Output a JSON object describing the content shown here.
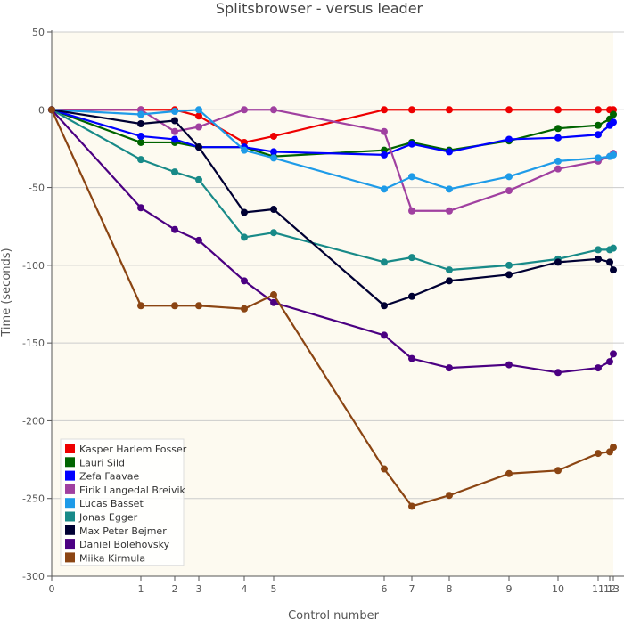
{
  "chart_data": {
    "type": "line",
    "title": "Splitsbrowser - versus leader",
    "xlabel": "Control number",
    "ylabel": "Time (seconds)",
    "x": [
      0,
      1,
      2,
      3,
      4,
      5,
      6,
      7,
      8,
      9,
      10,
      11,
      12,
      13
    ],
    "x_tick_labels": [
      "0",
      "1",
      "2",
      "3",
      "4",
      "5",
      "6",
      "7",
      "8",
      "9",
      "10",
      "11",
      "12",
      "13"
    ],
    "ylim": [
      -300,
      50
    ],
    "y_ticks": [
      50,
      0,
      -50,
      -100,
      -150,
      -200,
      -250,
      -300
    ],
    "grid": true,
    "legend_position": "bottom-left",
    "colors": {
      "plot_background": "#fdfaf0",
      "grid": "#cccccc",
      "axis": "#555555",
      "text": "#555555"
    },
    "series": [
      {
        "name": "Kasper Harlem Fosser",
        "color": "#ee0000",
        "values": [
          0,
          0,
          0,
          -4,
          -21,
          -17,
          0,
          0,
          0,
          0,
          0,
          0,
          0,
          0
        ]
      },
      {
        "name": "Lauri Sild",
        "color": "#006400",
        "values": [
          0,
          -21,
          -21,
          -24,
          -24,
          -30,
          -26,
          -21,
          -26,
          -20,
          -12,
          -10,
          -6,
          -3
        ]
      },
      {
        "name": "Zefa Faavae",
        "color": "#0000ff",
        "values": [
          0,
          -17,
          -19,
          -24,
          -24,
          -27,
          -29,
          -22,
          -27,
          -19,
          -18,
          -16,
          -10,
          -8
        ]
      },
      {
        "name": "Eirik Langedal Breivik",
        "color": "#a040a0",
        "values": [
          0,
          0,
          -14,
          -11,
          0,
          0,
          -14,
          -65,
          -65,
          -52,
          -38,
          -33,
          -30,
          -28
        ]
      },
      {
        "name": "Lucas Basset",
        "color": "#1e9be8",
        "values": [
          0,
          -3,
          -1,
          0,
          -26,
          -31,
          -51,
          -43,
          -51,
          -43,
          -33,
          -31,
          -30,
          -29
        ]
      },
      {
        "name": "Jonas Egger",
        "color": "#188a88",
        "values": [
          0,
          -32,
          -40,
          -45,
          -82,
          -79,
          -98,
          -95,
          -103,
          -100,
          -96,
          -90,
          -90,
          -89
        ]
      },
      {
        "name": "Max Peter Bejmer",
        "color": "#000033",
        "values": [
          0,
          -9,
          -7,
          -24,
          -66,
          -64,
          -126,
          -120,
          -110,
          -106,
          -98,
          -96,
          -98,
          -103
        ]
      },
      {
        "name": "Daniel Bolehovsky",
        "color": "#4b0082",
        "values": [
          0,
          -63,
          -77,
          -84,
          -110,
          -124,
          -145,
          -160,
          -166,
          -164,
          -169,
          -166,
          -162,
          -157
        ]
      },
      {
        "name": "Miika Kirmula",
        "color": "#8b4513",
        "values": [
          0,
          -126,
          -126,
          -126,
          -128,
          -119,
          -231,
          -255,
          -248,
          -234,
          -232,
          -221,
          -220,
          -217
        ]
      }
    ]
  }
}
